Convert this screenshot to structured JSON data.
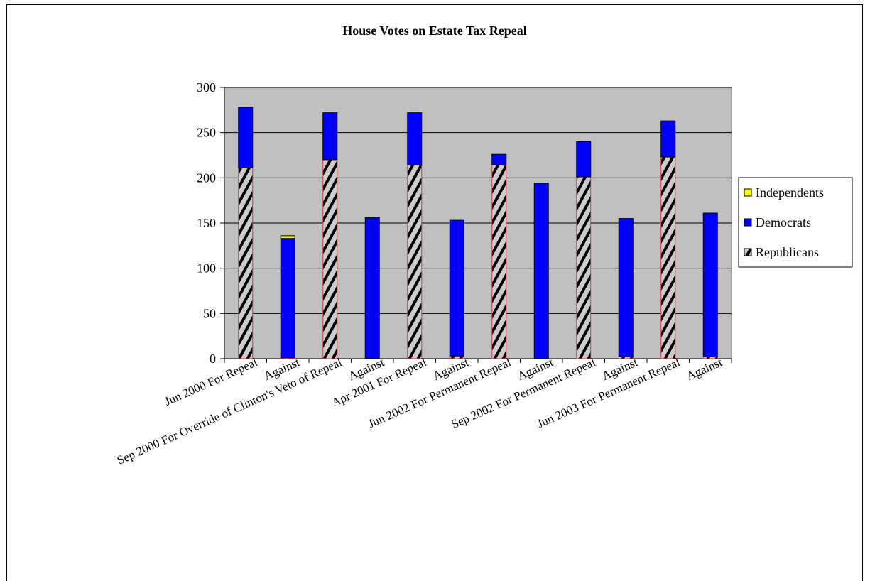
{
  "chart_data": {
    "type": "bar",
    "stacked": true,
    "title": "House Votes on Estate Tax Repeal",
    "xlabel": "",
    "ylabel": "",
    "ylim": [
      0,
      300
    ],
    "yticks": [
      0,
      50,
      100,
      150,
      200,
      250,
      300
    ],
    "grid": true,
    "legend_position": "right",
    "categories": [
      "Jun 2000 For Repeal",
      "Against",
      "Sep 2000 For Override of Clinton's Veto of Repeal",
      "Against",
      "Apr 2001 For Repeal",
      "Against",
      "Jun 2002 For Permanent Repeal",
      "Against",
      "Sep 2002 For Permanent Repeal",
      "Against",
      "Jun 2003 For Permanent Repeal",
      "Against"
    ],
    "series": [
      {
        "name": "Republicans",
        "color": "#800000",
        "values": [
          211,
          1,
          220,
          0,
          214,
          3,
          214,
          0,
          201,
          2,
          223,
          2
        ]
      },
      {
        "name": "Democrats",
        "color": "#0000ff",
        "values": [
          67,
          132,
          52,
          156,
          58,
          150,
          12,
          194,
          39,
          153,
          40,
          159
        ]
      },
      {
        "name": "Independents",
        "color": "#ffff00",
        "values": [
          0,
          3,
          0,
          0,
          0,
          0,
          0,
          0,
          0,
          0,
          0,
          0
        ]
      }
    ],
    "legend_order": [
      "Independents",
      "Democrats",
      "Republicans"
    ]
  }
}
